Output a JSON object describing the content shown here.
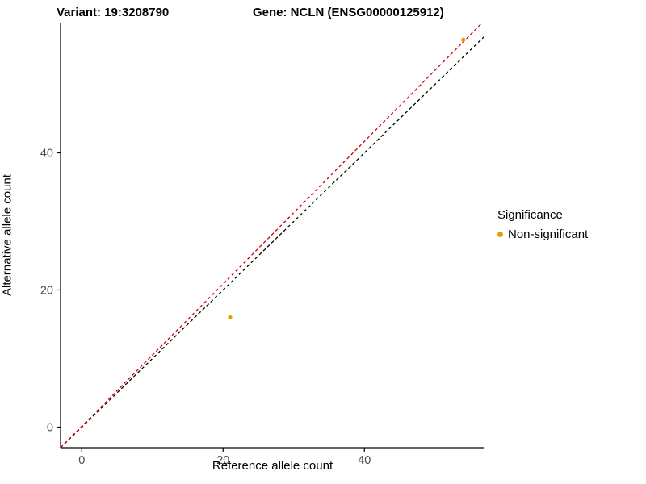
{
  "titles": {
    "variant": "Variant: 19:3208790",
    "gene": "Gene: NCLN (ENSG00000125912)"
  },
  "axes": {
    "x_label": "Reference allele count",
    "y_label": "Alternative allele count"
  },
  "legend": {
    "title": "Significance",
    "items": [
      {
        "label": "Non-significant",
        "color": "#E69F00"
      }
    ]
  },
  "chart_data": {
    "type": "scatter",
    "title": "Variant: 19:3208790  /  Gene: NCLN (ENSG00000125912)",
    "xlabel": "Reference allele count",
    "ylabel": "Alternative allele count",
    "xlim": [
      -3,
      57
    ],
    "ylim": [
      -3,
      59
    ],
    "xticks": [
      0,
      20,
      40
    ],
    "yticks": [
      0,
      20,
      40
    ],
    "grid": false,
    "legend_position": "right",
    "series": [
      {
        "name": "Non-significant",
        "color": "#E69F00",
        "points": [
          {
            "x": 21,
            "y": 16
          },
          {
            "x": 54,
            "y": 56.5
          }
        ]
      }
    ],
    "lines": [
      {
        "name": "identity-line",
        "x1": -3,
        "y1": -3,
        "x2": 57,
        "y2": 57,
        "color": "#000000",
        "dash": "4 3"
      },
      {
        "name": "fit-line",
        "x1": -3,
        "y1": -3,
        "x2": 56.5,
        "y2": 58.8,
        "color": "#CC0000",
        "dash": "4 3"
      }
    ],
    "point_radius": 2.6,
    "tick_label_color": "#4D4D4D",
    "axis_color": "#000000"
  }
}
